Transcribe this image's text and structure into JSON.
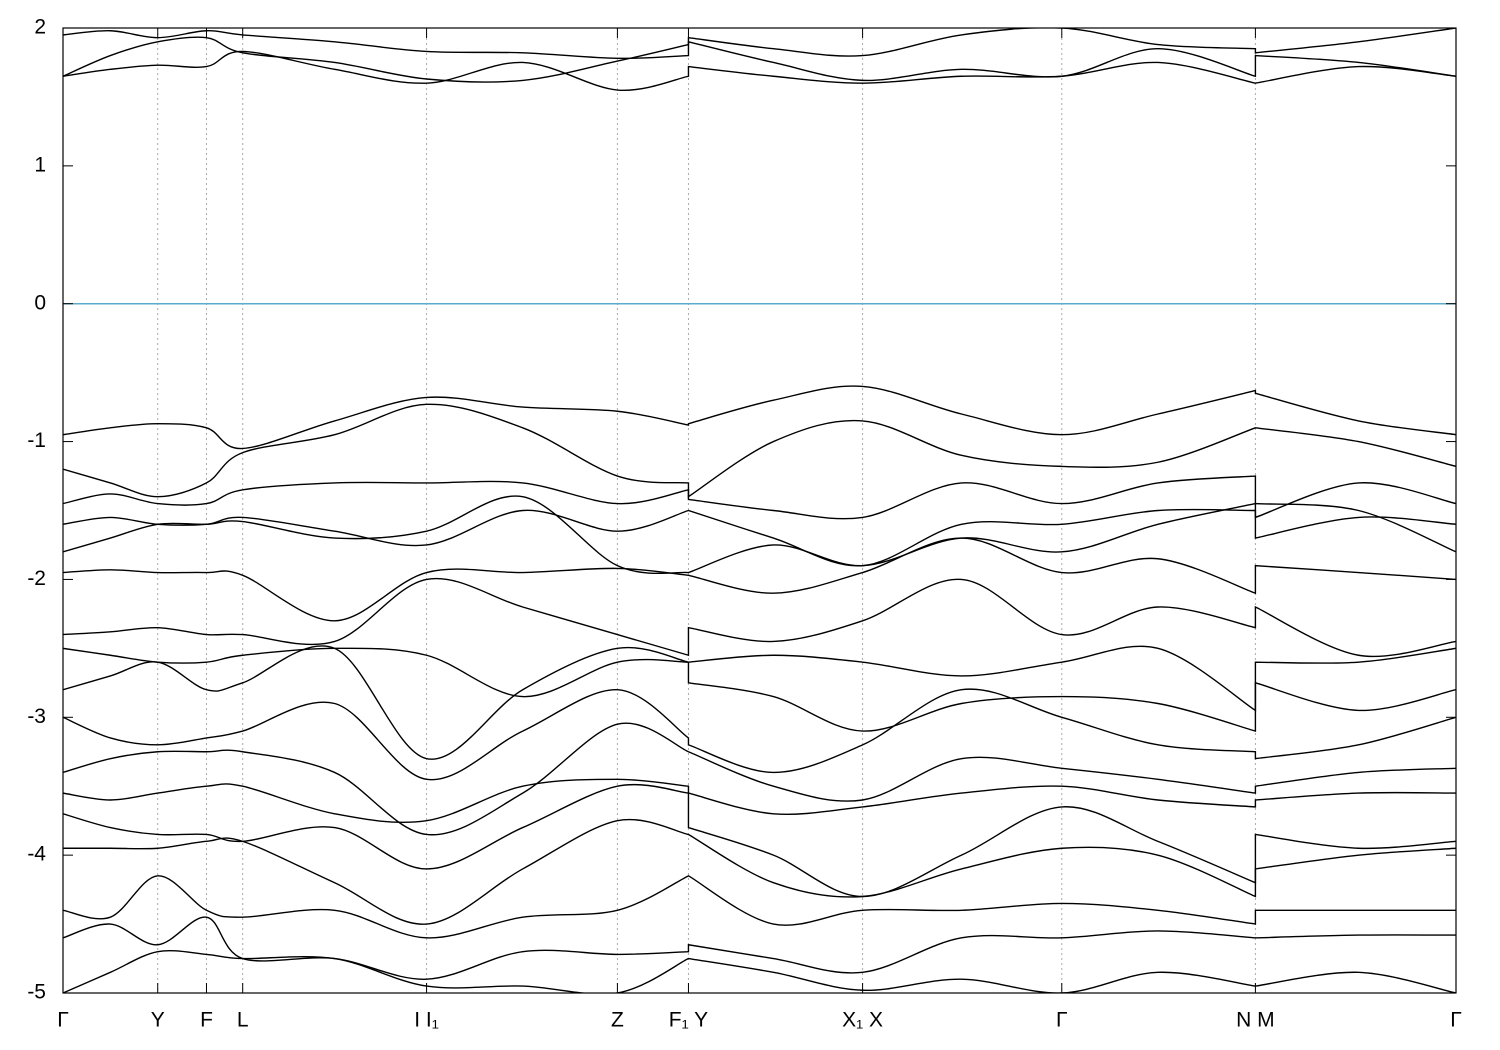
{
  "chart_data": {
    "type": "line",
    "x": [
      0,
      0.034,
      0.068,
      0.103,
      0.129,
      0.195,
      0.261,
      0.33,
      0.398,
      0.449,
      0.449,
      0.51,
      0.574,
      0.645,
      0.717,
      0.786,
      0.856,
      0.856,
      0.93,
      1
    ],
    "xlim": [
      0,
      1
    ],
    "xticks": [
      {
        "value": 0,
        "label": "Γ"
      },
      {
        "value": 0.068,
        "label": "Y"
      },
      {
        "value": 0.103,
        "label": "F"
      },
      {
        "value": 0.129,
        "label": "L"
      },
      {
        "value": 0.261,
        "label": "I  I₁"
      },
      {
        "value": 0.398,
        "label": "Z"
      },
      {
        "value": 0.449,
        "label": "F₁ Y"
      },
      {
        "value": 0.574,
        "label": "X₁ X"
      },
      {
        "value": 0.717,
        "label": "Γ"
      },
      {
        "value": 0.856,
        "label": "N M"
      },
      {
        "value": 1,
        "label": "Γ"
      }
    ],
    "ylim": [
      -5,
      2
    ],
    "yticks": [
      2,
      1,
      0,
      -1,
      -2,
      -3,
      -4,
      -5
    ],
    "grid": true,
    "fermi_level": 0,
    "fermi_color": "#5aaccc",
    "series": [
      {
        "color": "#000000",
        "values": [
          1.65,
          1.7,
          1.73,
          1.72,
          1.83,
          1.7,
          1.6,
          1.75,
          1.55,
          1.65,
          1.72,
          1.65,
          1.6,
          1.65,
          1.65,
          1.75,
          1.6,
          1.6,
          1.72,
          1.65
        ]
      },
      {
        "color": "#000000",
        "values": [
          1.65,
          1.8,
          1.9,
          1.93,
          1.82,
          1.75,
          1.63,
          1.62,
          1.76,
          1.88,
          1.9,
          1.75,
          1.62,
          1.7,
          1.65,
          1.85,
          1.65,
          1.8,
          1.75,
          1.65
        ]
      },
      {
        "color": "#000000",
        "values": [
          1.95,
          1.98,
          1.93,
          1.98,
          1.95,
          1.9,
          1.83,
          1.82,
          1.78,
          1.8,
          1.93,
          1.85,
          1.8,
          1.95,
          2.0,
          1.88,
          1.85,
          1.82,
          1.9,
          2.0
        ]
      },
      {
        "color": "#000000",
        "values": [
          -0.95,
          -0.9,
          -0.87,
          -0.9,
          -1.05,
          -0.85,
          -0.68,
          -0.75,
          -0.78,
          -0.88,
          -0.87,
          -0.7,
          -0.6,
          -0.8,
          -0.95,
          -0.8,
          -0.63,
          -0.65,
          -0.85,
          -0.95
        ]
      },
      {
        "color": "#000000",
        "values": [
          -1.2,
          -1.3,
          -1.4,
          -1.3,
          -1.08,
          -0.95,
          -0.73,
          -0.9,
          -1.25,
          -1.3,
          -1.4,
          -1.0,
          -0.85,
          -1.1,
          -1.18,
          -1.15,
          -0.9,
          -0.9,
          -1.0,
          -1.18
        ]
      },
      {
        "color": "#000000",
        "values": [
          -1.45,
          -1.38,
          -1.45,
          -1.45,
          -1.35,
          -1.3,
          -1.3,
          -1.3,
          -1.45,
          -1.35,
          -1.42,
          -1.5,
          -1.55,
          -1.3,
          -1.45,
          -1.3,
          -1.25,
          -1.55,
          -1.3,
          -1.45
        ]
      },
      {
        "color": "#000000",
        "values": [
          -1.6,
          -1.55,
          -1.6,
          -1.6,
          -1.55,
          -1.65,
          -1.75,
          -1.5,
          -1.65,
          -1.5,
          -1.5,
          -1.7,
          -1.9,
          -1.6,
          -1.6,
          -1.5,
          -1.5,
          -1.7,
          -1.55,
          -1.6
        ]
      },
      {
        "color": "#000000",
        "values": [
          -1.8,
          -1.7,
          -1.6,
          -1.6,
          -1.58,
          -1.7,
          -1.65,
          -1.4,
          -1.9,
          -1.95,
          -1.95,
          -1.75,
          -1.9,
          -1.7,
          -1.8,
          -1.6,
          -1.45,
          -1.45,
          -1.5,
          -1.8
        ]
      },
      {
        "color": "#000000",
        "values": [
          -1.95,
          -1.93,
          -1.95,
          -1.95,
          -1.97,
          -2.3,
          -1.95,
          -1.95,
          -1.92,
          -1.97,
          -1.97,
          -2.1,
          -1.95,
          -1.7,
          -1.95,
          -1.85,
          -2.1,
          -1.9,
          -1.95,
          -2.0
        ]
      },
      {
        "color": "#000000",
        "values": [
          -2.4,
          -2.38,
          -2.35,
          -2.4,
          -2.4,
          -2.45,
          -2.0,
          -2.2,
          -2.4,
          -2.55,
          -2.35,
          -2.45,
          -2.3,
          -2.0,
          -2.4,
          -2.2,
          -2.35,
          -2.2,
          -2.55,
          -2.45
        ]
      },
      {
        "color": "#000000",
        "values": [
          -2.5,
          -2.55,
          -2.6,
          -2.6,
          -2.55,
          -2.5,
          -2.55,
          -2.85,
          -2.6,
          -2.6,
          -2.6,
          -2.55,
          -2.6,
          -2.7,
          -2.6,
          -2.5,
          -2.95,
          -2.6,
          -2.6,
          -2.5
        ]
      },
      {
        "color": "#000000",
        "values": [
          -2.8,
          -2.7,
          -2.6,
          -2.8,
          -2.75,
          -2.5,
          -3.3,
          -2.8,
          -2.5,
          -2.6,
          -2.75,
          -2.85,
          -3.1,
          -2.9,
          -2.85,
          -2.9,
          -3.1,
          -2.75,
          -2.95,
          -2.8
        ]
      },
      {
        "color": "#000000",
        "values": [
          -3.0,
          -3.15,
          -3.2,
          -3.15,
          -3.1,
          -2.9,
          -3.45,
          -3.1,
          -2.8,
          -3.15,
          -3.2,
          -3.4,
          -3.2,
          -2.8,
          -3.0,
          -3.2,
          -3.25,
          -3.3,
          -3.2,
          -3.0
        ]
      },
      {
        "color": "#000000",
        "values": [
          -3.4,
          -3.3,
          -3.25,
          -3.25,
          -3.25,
          -3.4,
          -3.85,
          -3.55,
          -3.05,
          -3.25,
          -3.25,
          -3.5,
          -3.6,
          -3.3,
          -3.37,
          -3.45,
          -3.55,
          -3.5,
          -3.4,
          -3.37
        ]
      },
      {
        "color": "#000000",
        "values": [
          -3.55,
          -3.6,
          -3.55,
          -3.5,
          -3.5,
          -3.7,
          -3.75,
          -3.5,
          -3.45,
          -3.5,
          -3.55,
          -3.7,
          -3.65,
          -3.55,
          -3.5,
          -3.6,
          -3.65,
          -3.6,
          -3.55,
          -3.55
        ]
      },
      {
        "color": "#000000",
        "values": [
          -3.7,
          -3.8,
          -3.85,
          -3.85,
          -3.9,
          -3.8,
          -4.1,
          -3.8,
          -3.5,
          -3.55,
          -3.8,
          -4.0,
          -4.3,
          -4.0,
          -3.65,
          -3.9,
          -4.2,
          -3.85,
          -3.95,
          -3.9
        ]
      },
      {
        "color": "#000000",
        "values": [
          -3.95,
          -3.95,
          -3.95,
          -3.9,
          -3.9,
          -4.2,
          -4.5,
          -4.1,
          -3.75,
          -3.85,
          -3.85,
          -4.2,
          -4.3,
          -4.1,
          -3.95,
          -4.0,
          -4.3,
          -4.1,
          -4.0,
          -3.95
        ]
      },
      {
        "color": "#000000",
        "values": [
          -4.4,
          -4.45,
          -4.15,
          -4.4,
          -4.45,
          -4.4,
          -4.6,
          -4.45,
          -4.4,
          -4.15,
          -4.15,
          -4.5,
          -4.4,
          -4.4,
          -4.35,
          -4.4,
          -4.5,
          -4.4,
          -4.4,
          -4.4
        ]
      },
      {
        "color": "#000000",
        "values": [
          -4.6,
          -4.5,
          -4.65,
          -4.45,
          -4.75,
          -4.75,
          -4.9,
          -4.7,
          -4.72,
          -4.7,
          -4.65,
          -4.75,
          -4.85,
          -4.6,
          -4.6,
          -4.55,
          -4.6,
          -4.6,
          -4.58,
          -4.58
        ]
      },
      {
        "color": "#000000",
        "values": [
          -5.0,
          -4.85,
          -4.7,
          -4.72,
          -4.75,
          -4.75,
          -4.95,
          -4.95,
          -5.0,
          -4.75,
          -4.75,
          -4.85,
          -4.98,
          -4.9,
          -5.0,
          -4.85,
          -4.95,
          -4.95,
          -4.85,
          -5.0
        ]
      }
    ]
  }
}
